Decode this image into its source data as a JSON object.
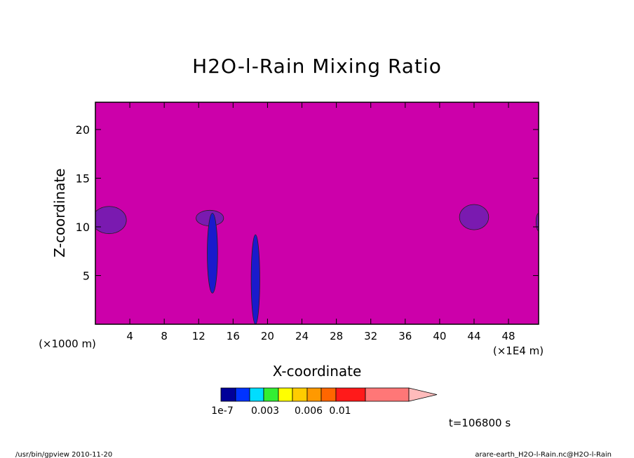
{
  "chart_data": {
    "type": "heatmap",
    "title": "H2O-l-Rain Mixing Ratio",
    "xlabel": "X-coordinate",
    "ylabel": "Z-coordinate",
    "x_unit_label": "(×1E4 m)",
    "y_unit_label": "(×1000 m)",
    "xlim": [
      0,
      51.5
    ],
    "ylim": [
      0,
      22.8
    ],
    "x_ticks": [
      4,
      8,
      12,
      16,
      20,
      24,
      28,
      32,
      36,
      40,
      44,
      48
    ],
    "y_ticks": [
      5,
      10,
      15,
      20
    ],
    "background_value_color": "#cc00aa",
    "features": [
      {
        "level": "1e-7 band",
        "color": "#7a1ab0",
        "center_x": 1.6,
        "center_z": 10.7,
        "half_width": 2.0,
        "half_height": 1.4
      },
      {
        "level": "1e-7 band",
        "color": "#7a1ab0",
        "center_x": 44.0,
        "center_z": 11.0,
        "half_width": 1.7,
        "half_height": 1.3
      },
      {
        "level": "1e-7 band",
        "color": "#7a1ab0",
        "center_x": 51.5,
        "center_z": 10.5,
        "half_width": 0.3,
        "half_height": 0.9
      },
      {
        "level": "1e-7 band",
        "color": "#7a1ab0",
        "center_x": 13.3,
        "center_z": 10.9,
        "half_width": 1.6,
        "half_height": 0.8
      },
      {
        "level": "low",
        "color": "#1a1acc",
        "center_x": 13.6,
        "center_z": 7.3,
        "half_width": 0.6,
        "half_height": 4.1
      },
      {
        "level": "low",
        "color": "#1a1acc",
        "center_x": 18.6,
        "center_z": 4.6,
        "half_width": 0.5,
        "half_height": 4.6
      }
    ],
    "colorbar": {
      "colors": [
        "#000099",
        "#0033ff",
        "#00ddff",
        "#33ee33",
        "#ffff00",
        "#ffcc00",
        "#ff9900",
        "#ff6600",
        "#ff1a1a",
        "#ff7777",
        "#ffbbbb"
      ],
      "tick_labels": [
        "1e-7",
        "0.003",
        "0.006",
        "0.01"
      ]
    },
    "time_label": "t=106800 s",
    "grid": false,
    "legend": "colorbar bottom-center"
  },
  "footer": {
    "left": "/usr/bin/gpview   2010-11-20",
    "right": "arare-earth_H2O-l-Rain.nc@H2O-l-Rain"
  }
}
